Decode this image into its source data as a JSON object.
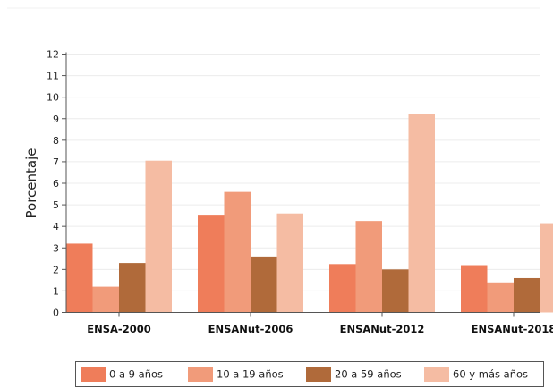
{
  "chart_data": {
    "type": "bar",
    "title": "",
    "xlabel": "",
    "ylabel": "Porcentaje",
    "ylim": [
      0,
      12
    ],
    "yticks": [
      0,
      1,
      2,
      3,
      4,
      5,
      6,
      7,
      8,
      9,
      10,
      11,
      12
    ],
    "grid": true,
    "legend_position": "bottom",
    "categories": [
      "ENSA-2000",
      "ENSANut-2006",
      "ENSANut-2012",
      "ENSANut-2018"
    ],
    "series": [
      {
        "name": "0 a 9 años",
        "color": "#ef7d5a",
        "values": [
          3.2,
          4.5,
          2.25,
          2.2
        ]
      },
      {
        "name": "10 a 19 años",
        "color": "#f19b7a",
        "values": [
          1.2,
          5.6,
          4.25,
          1.4
        ]
      },
      {
        "name": "20 a 59 años",
        "color": "#b06a3a",
        "values": [
          2.3,
          2.6,
          2.0,
          1.6
        ]
      },
      {
        "name": "60 y más años",
        "color": "#f5bca3",
        "values": [
          7.05,
          4.6,
          9.2,
          4.15
        ]
      }
    ]
  }
}
